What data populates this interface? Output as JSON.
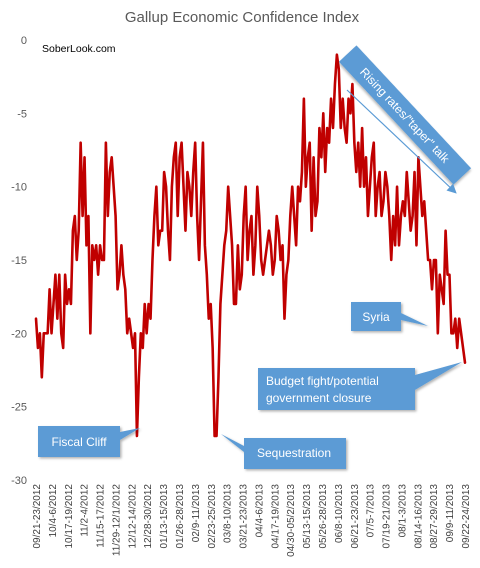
{
  "chart_data": {
    "type": "line",
    "title": "Gallup Economic Confidence Index",
    "watermark": "SoberLook.com",
    "xlabel": "",
    "ylabel": "",
    "ylim": [
      -30,
      0
    ],
    "yticks": [
      0,
      -5,
      -10,
      -15,
      -20,
      -25,
      -30
    ],
    "grid": false,
    "line_color": "#c00000",
    "callout_color": "#5b9bd5",
    "x_tick_labels": [
      "09/21-23/2012",
      "10/4-6/2012",
      "10/17-19/2012",
      "11/2-4/2012",
      "11/15-17/2012",
      "11/29-12/1/2012",
      "12/12-14/2012",
      "12/28-30/2012",
      "01/13-15/2013",
      "01/26-28/2013",
      "02/9-11/2013",
      "02/23-25/2013",
      "03/8-10/2013",
      "03/21-23/2013",
      "04/4-6/2013",
      "04/17-19/2013",
      "04/30-05/2/2013",
      "05/13-15/2013",
      "05/26-28/2013",
      "06/8-10/2013",
      "06/21-23/2013",
      "07/5-7/2013",
      "07/19-21/2013",
      "08/1-3/2013",
      "08/14-16/2013",
      "08/27-29/2013",
      "09/9-11/2013",
      "09/22-24/2013"
    ],
    "series": [
      {
        "values": [
          -19,
          -21,
          -20,
          -23,
          -20,
          -20,
          -20,
          -17,
          -20,
          -18,
          -16,
          -19,
          -16,
          -20,
          -21,
          -16,
          -18,
          -17,
          -18,
          -13,
          -12,
          -15,
          -13,
          -7,
          -12,
          -8,
          -14,
          -12,
          -20,
          -14,
          -15,
          -14,
          -16,
          -14,
          -15,
          -15,
          -7,
          -12,
          -9,
          -8,
          -10,
          -12,
          -17,
          -16,
          -14,
          -16,
          -17,
          -20,
          -19,
          -20,
          -21,
          -20,
          -27,
          -23,
          -20,
          -21,
          -18,
          -20,
          -18,
          -19,
          -15,
          -12,
          -10,
          -14,
          -13,
          -13,
          -9,
          -10,
          -13,
          -15,
          -10,
          -8,
          -7,
          -12,
          -8,
          -7,
          -10,
          -13,
          -9,
          -10,
          -12,
          -9,
          -7,
          -12,
          -15,
          -11,
          -7,
          -14,
          -16,
          -19,
          -18,
          -21,
          -27,
          -27,
          -23,
          -18,
          -16,
          -14,
          -13,
          -10,
          -12,
          -14,
          -18,
          -18,
          -14,
          -17,
          -16,
          -12,
          -10,
          -15,
          -13,
          -12,
          -16,
          -14,
          -10,
          -12,
          -15,
          -16,
          -15,
          -14,
          -13,
          -14,
          -16,
          -15,
          -12,
          -13,
          -15,
          -14,
          -19,
          -16,
          -15,
          -12,
          -10,
          -12,
          -14,
          -10,
          -11,
          -9,
          -4,
          -10,
          -8,
          -7,
          -13,
          -8,
          -12,
          -11,
          -6,
          -8,
          -5,
          -9,
          -6,
          -7,
          -4,
          -6,
          -3,
          -1,
          -2,
          -6,
          -4,
          -6,
          -7,
          -4,
          -5,
          -3,
          -7,
          -9,
          -7,
          -10,
          -6,
          -10,
          -8,
          -12,
          -10,
          -8,
          -7,
          -12,
          -10,
          -9,
          -12,
          -11,
          -9,
          -10,
          -12,
          -15,
          -12,
          -14,
          -10,
          -14,
          -12,
          -11,
          -12,
          -9,
          -11,
          -13,
          -12,
          -9,
          -14,
          -8,
          -10,
          -12,
          -11,
          -13,
          -15,
          -15,
          -17,
          -15,
          -15,
          -20,
          -16,
          -17,
          -18,
          -13,
          -16,
          -16,
          -20,
          -20,
          -19,
          -21,
          -19,
          -20,
          -21,
          -22
        ]
      }
    ],
    "annotations": [
      {
        "label": "Rising rates/\"taper\" talk"
      },
      {
        "label": "Syria"
      },
      {
        "label": "Budget fight/potential government closure"
      },
      {
        "label": "Fiscal Cliff"
      },
      {
        "label": "Sequestration"
      }
    ]
  }
}
